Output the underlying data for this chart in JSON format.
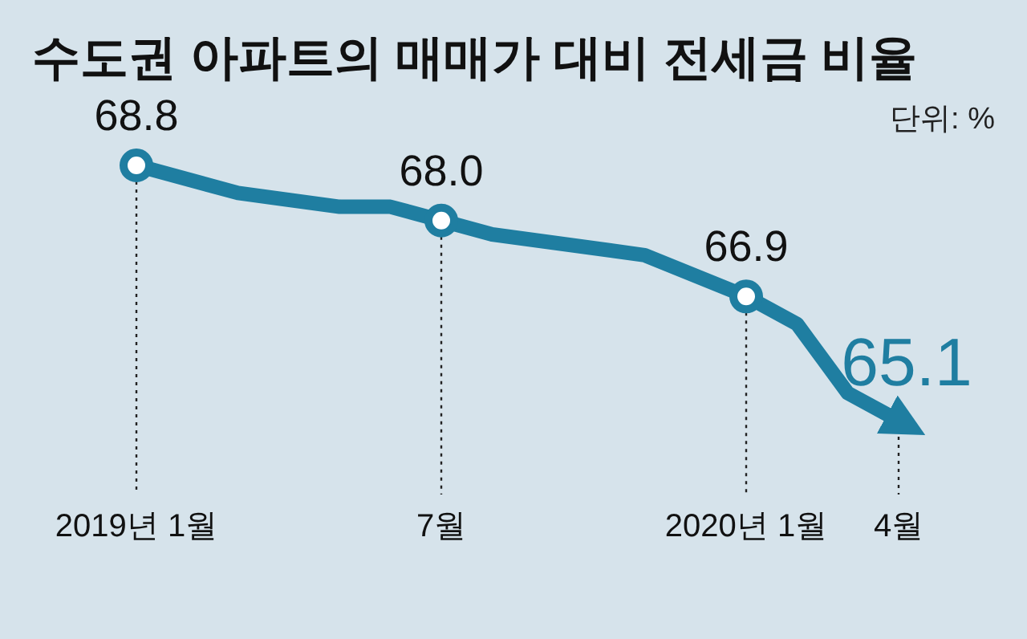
{
  "chart_data": {
    "type": "line",
    "title": "수도권 아파트의 매매가 대비 전세금 비율",
    "annotations": [
      "단위: %"
    ],
    "x": [
      "2019-01",
      "2019-03",
      "2019-05",
      "2019-06",
      "2019-07",
      "2019-08",
      "2019-11",
      "2020-01",
      "2020-02",
      "2020-03",
      "2020-04"
    ],
    "xticks": [
      {
        "value": "2019-01",
        "label": "2019년 1월"
      },
      {
        "value": "2019-07",
        "label": "7월"
      },
      {
        "value": "2020-01",
        "label": "2020년 1월"
      },
      {
        "value": "2020-04",
        "label": "4월"
      }
    ],
    "series": [
      {
        "color": "#1f7ea1",
        "values": [
          68.8,
          68.4,
          68.2,
          68.2,
          68.0,
          67.8,
          67.5,
          66.9,
          66.5,
          65.5,
          65.1
        ],
        "value_labels": [
          "68.8",
          null,
          null,
          null,
          "68.0",
          null,
          null,
          "66.9",
          null,
          null,
          "65.1"
        ]
      }
    ],
    "xlim": [
      "2019-01",
      "2020-04"
    ],
    "grid": "x",
    "line_style": "solid"
  }
}
